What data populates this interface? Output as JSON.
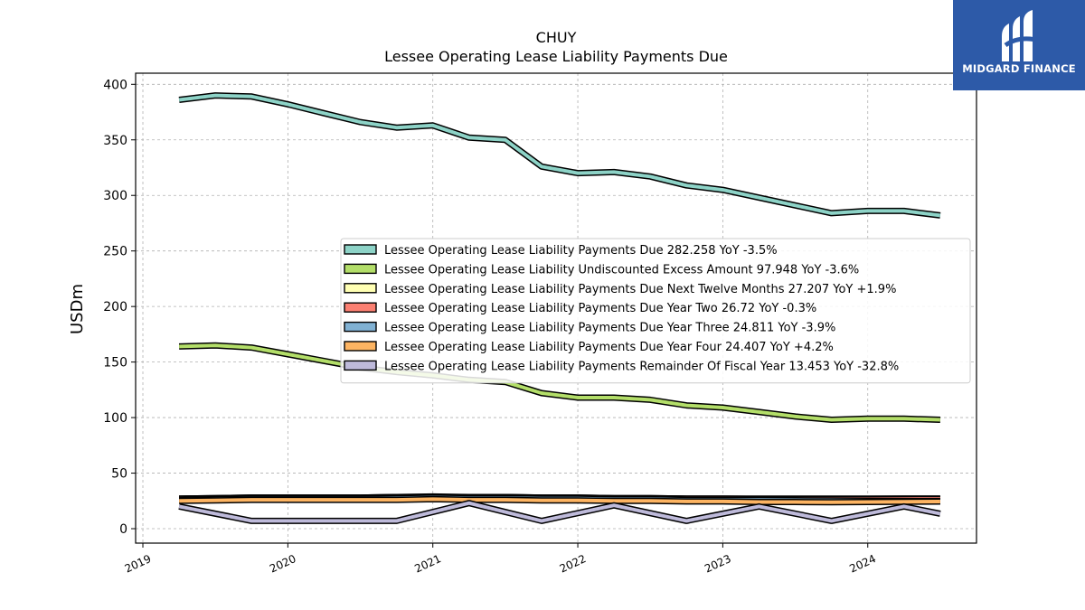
{
  "brand": {
    "name": "MIDGARD FINANCE",
    "icon": "midgard-logo-icon",
    "color": "#2d5aa8"
  },
  "chart_data": {
    "type": "line",
    "title": "CHUY",
    "subtitle": "Lessee Operating Lease Liability Payments Due",
    "ylabel": "USDm",
    "xlabel": "",
    "ylim": [
      -13,
      410
    ],
    "xlim": [
      2018.95,
      2024.75
    ],
    "yticks": [
      0,
      50,
      100,
      150,
      200,
      250,
      300,
      350,
      400
    ],
    "xticks": [
      2019,
      2020,
      2021,
      2022,
      2023,
      2024
    ],
    "grid": true,
    "legend_position": "center-right",
    "series": [
      {
        "name": "Lessee Operating Lease Liability Payments Due",
        "legend_label": "Lessee Operating Lease Liability Payments Due  282.258 YoY -3.5%",
        "color": "#8dd3c7",
        "x": [
          2019.25,
          2019.5,
          2019.75,
          2020.0,
          2020.25,
          2020.5,
          2020.75,
          2021.0,
          2021.25,
          2021.5,
          2021.75,
          2022.0,
          2022.25,
          2022.5,
          2022.75,
          2023.0,
          2023.25,
          2023.5,
          2023.75,
          2024.0,
          2024.25,
          2024.5
        ],
        "y": [
          386,
          390,
          389,
          382,
          374,
          366,
          361,
          363,
          352,
          350,
          326,
          320,
          321,
          317,
          309,
          305,
          298,
          291,
          284,
          286,
          286,
          282
        ]
      },
      {
        "name": "Lessee Operating Lease Liability Undiscounted Excess Amount",
        "legend_label": "Lessee Operating Lease Liability Undiscounted Excess Amount  97.948 YoY -3.6%",
        "color": "#b3de69",
        "x": [
          2019.25,
          2019.5,
          2019.75,
          2020.0,
          2020.25,
          2020.5,
          2020.75,
          2021.0,
          2021.25,
          2021.5,
          2021.75,
          2022.0,
          2022.25,
          2022.5,
          2022.75,
          2023.0,
          2023.25,
          2023.5,
          2023.75,
          2024.0,
          2024.25,
          2024.5
        ],
        "y": [
          164,
          165,
          163,
          157,
          151,
          145,
          141,
          138,
          134,
          132,
          122,
          118,
          118,
          116,
          111,
          109,
          105,
          101,
          98,
          99,
          99,
          98
        ]
      },
      {
        "name": "Lessee Operating Lease Liability Payments Due Next Twelve Months",
        "legend_label": "Lessee Operating Lease Liability Payments Due Next Twelve Months  27.207 YoY +1.9%",
        "color": "#ffffb3",
        "x": [
          2019.25,
          2019.5,
          2019.75,
          2020.0,
          2020.25,
          2020.5,
          2020.75,
          2021.0,
          2021.25,
          2021.5,
          2021.75,
          2022.0,
          2022.25,
          2022.5,
          2022.75,
          2023.0,
          2023.25,
          2023.5,
          2023.75,
          2024.0,
          2024.25,
          2024.5
        ],
        "y": [
          27,
          27.5,
          28,
          28,
          28,
          28,
          28.5,
          29,
          28.5,
          28.5,
          28,
          28,
          27.5,
          27.5,
          27,
          27,
          27,
          27,
          27,
          27,
          27.2,
          27.2
        ]
      },
      {
        "name": "Lessee Operating Lease Liability Payments Due Year Two",
        "legend_label": "Lessee Operating Lease Liability Payments Due Year Two  26.72 YoY -0.3%",
        "color": "#fb8072",
        "x": [
          2019.25,
          2019.5,
          2019.75,
          2020.0,
          2020.25,
          2020.5,
          2020.75,
          2021.0,
          2021.25,
          2021.5,
          2021.75,
          2022.0,
          2022.25,
          2022.5,
          2022.75,
          2023.0,
          2023.25,
          2023.5,
          2023.75,
          2024.0,
          2024.25,
          2024.5
        ],
        "y": [
          27,
          27.5,
          28,
          28,
          28,
          28,
          28.5,
          28.5,
          28.5,
          28.5,
          28,
          28,
          27.5,
          27.5,
          27,
          27,
          26.8,
          26.8,
          26.8,
          26.8,
          26.8,
          26.7
        ]
      },
      {
        "name": "Lessee Operating Lease Liability Payments Due Year Three",
        "legend_label": "Lessee Operating Lease Liability Payments Due Year Three  24.811 YoY -3.9%",
        "color": "#80b1d3",
        "x": [
          2019.25,
          2019.5,
          2019.75,
          2020.0,
          2020.25,
          2020.5,
          2020.75,
          2021.0,
          2021.25,
          2021.5,
          2021.75,
          2022.0,
          2022.25,
          2022.5,
          2022.75,
          2023.0,
          2023.25,
          2023.5,
          2023.75,
          2024.0,
          2024.25,
          2024.5
        ],
        "y": [
          26,
          26.5,
          27,
          27,
          27,
          27,
          27.5,
          28,
          27.5,
          27.5,
          27,
          27,
          26.5,
          26.5,
          26,
          26,
          25.8,
          25.6,
          25.4,
          25.2,
          25,
          24.8
        ]
      },
      {
        "name": "Lessee Operating Lease Liability Payments Due Year Four",
        "legend_label": "Lessee Operating Lease Liability Payments Due Year Four  24.407 YoY +4.2%",
        "color": "#fdb462",
        "x": [
          2019.25,
          2019.5,
          2019.75,
          2020.0,
          2020.25,
          2020.5,
          2020.75,
          2021.0,
          2021.25,
          2021.5,
          2021.75,
          2022.0,
          2022.25,
          2022.5,
          2022.75,
          2023.0,
          2023.25,
          2023.5,
          2023.75,
          2024.0,
          2024.25,
          2024.5
        ],
        "y": [
          25,
          25.5,
          26,
          26,
          26,
          26,
          26,
          26.5,
          26,
          26,
          25.5,
          25.5,
          25,
          25,
          24.5,
          24.5,
          24,
          24,
          23.8,
          24,
          24.2,
          24.4
        ]
      },
      {
        "name": "Lessee Operating Lease Liability Payments Remainder Of Fiscal Year",
        "legend_label": "Lessee Operating Lease Liability Payments Remainder Of Fiscal Year  13.453 YoY -32.8%",
        "color": "#bebada",
        "x": [
          2019.25,
          2019.75,
          2020.75,
          2021.25,
          2021.75,
          2022.25,
          2022.75,
          2023.25,
          2023.75,
          2024.25,
          2024.5
        ],
        "y": [
          20,
          7,
          7,
          23,
          7,
          21,
          7,
          20,
          7,
          20,
          13.5
        ]
      }
    ]
  }
}
